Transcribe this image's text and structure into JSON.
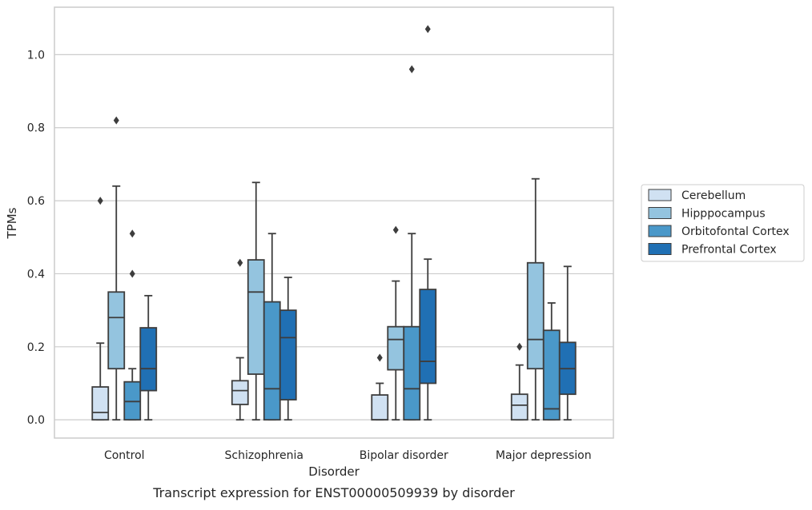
{
  "chart_data": {
    "type": "box",
    "caption": "Transcript expression for ENST00000509939 by disorder",
    "xlabel": "Disorder",
    "ylabel": "TPMs",
    "ylim": [
      -0.05,
      1.13
    ],
    "yticks": [
      "0.0",
      "0.2",
      "0.4",
      "0.6",
      "0.8",
      "1.0"
    ],
    "ytick_values": [
      0.0,
      0.2,
      0.4,
      0.6,
      0.8,
      1.0
    ],
    "grid": "horizontal",
    "legend_position": "right",
    "categories": [
      "Control",
      "Schizophrenia",
      "Bipolar disorder",
      "Major depression"
    ],
    "series": [
      {
        "name": "Cerebellum",
        "color": "#d0e1f2",
        "boxes": [
          {
            "whisker_low": 0.0,
            "q1": 0.0,
            "median": 0.02,
            "q3": 0.09,
            "whisker_high": 0.21,
            "outliers": [
              0.6
            ]
          },
          {
            "whisker_low": 0.0,
            "q1": 0.042,
            "median": 0.08,
            "q3": 0.107,
            "whisker_high": 0.17,
            "outliers": [
              0.43
            ]
          },
          {
            "whisker_low": 0.0,
            "q1": 0.0,
            "median": 0.0,
            "q3": 0.068,
            "whisker_high": 0.1,
            "outliers": [
              0.17
            ]
          },
          {
            "whisker_low": 0.0,
            "q1": 0.0,
            "median": 0.04,
            "q3": 0.07,
            "whisker_high": 0.15,
            "outliers": [
              0.2
            ]
          }
        ]
      },
      {
        "name": "Hipppocampus",
        "color": "#94c4df",
        "boxes": [
          {
            "whisker_low": 0.0,
            "q1": 0.14,
            "median": 0.28,
            "q3": 0.35,
            "whisker_high": 0.64,
            "outliers": [
              0.82
            ]
          },
          {
            "whisker_low": 0.0,
            "q1": 0.125,
            "median": 0.35,
            "q3": 0.438,
            "whisker_high": 0.65,
            "outliers": []
          },
          {
            "whisker_low": 0.0,
            "q1": 0.137,
            "median": 0.22,
            "q3": 0.255,
            "whisker_high": 0.38,
            "outliers": [
              0.52
            ]
          },
          {
            "whisker_low": 0.0,
            "q1": 0.14,
            "median": 0.22,
            "q3": 0.43,
            "whisker_high": 0.66,
            "outliers": []
          }
        ]
      },
      {
        "name": "Orbitofontal Cortex",
        "color": "#4a98c9",
        "boxes": [
          {
            "whisker_low": 0.0,
            "q1": 0.0,
            "median": 0.05,
            "q3": 0.104,
            "whisker_high": 0.14,
            "outliers": [
              0.4,
              0.51
            ]
          },
          {
            "whisker_low": 0.0,
            "q1": 0.0,
            "median": 0.085,
            "q3": 0.323,
            "whisker_high": 0.51,
            "outliers": []
          },
          {
            "whisker_low": 0.0,
            "q1": 0.0,
            "median": 0.085,
            "q3": 0.255,
            "whisker_high": 0.51,
            "outliers": [
              0.96
            ]
          },
          {
            "whisker_low": 0.0,
            "q1": 0.0,
            "median": 0.03,
            "q3": 0.245,
            "whisker_high": 0.32,
            "outliers": []
          }
        ]
      },
      {
        "name": "Prefrontal Cortex",
        "color": "#2070b4",
        "boxes": [
          {
            "whisker_low": 0.0,
            "q1": 0.08,
            "median": 0.14,
            "q3": 0.252,
            "whisker_high": 0.34,
            "outliers": []
          },
          {
            "whisker_low": 0.0,
            "q1": 0.055,
            "median": 0.225,
            "q3": 0.3,
            "whisker_high": 0.39,
            "outliers": []
          },
          {
            "whisker_low": 0.0,
            "q1": 0.1,
            "median": 0.16,
            "q3": 0.357,
            "whisker_high": 0.44,
            "outliers": [
              1.07
            ]
          },
          {
            "whisker_low": 0.0,
            "q1": 0.07,
            "median": 0.14,
            "q3": 0.212,
            "whisker_high": 0.42,
            "outliers": []
          }
        ]
      }
    ]
  }
}
